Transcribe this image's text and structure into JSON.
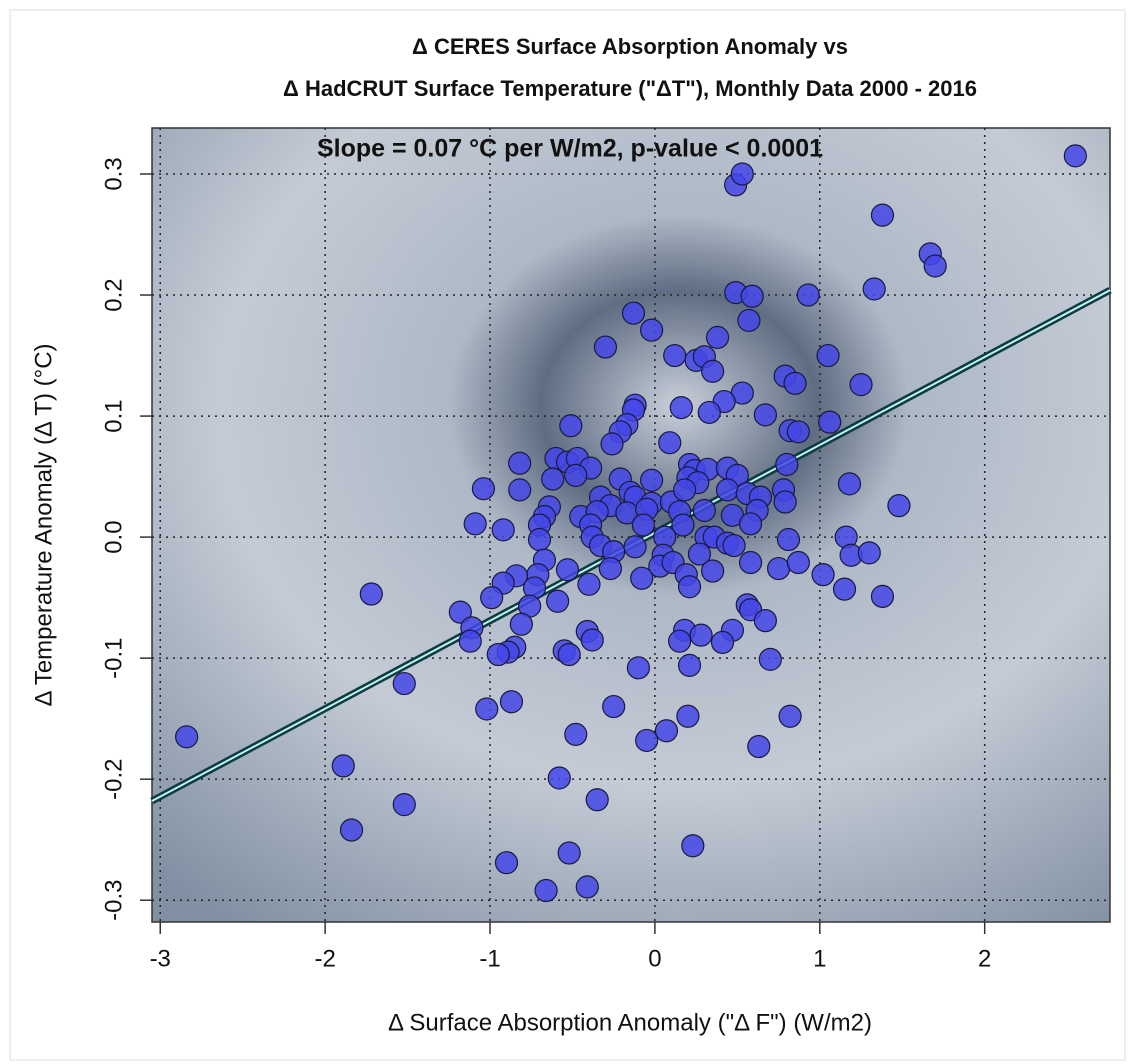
{
  "chart_data": {
    "type": "scatter",
    "title": [
      "Δ CERES Surface Absorption Anomaly vs",
      "Δ HadCRUT Surface Temperature (\"ΔT\"), Monthly Data 2000 - 2016"
    ],
    "annotation": "Slope = 0.07 °C per W/m2, p-value < 0.0001",
    "xlabel": "Δ Surface Absorption Anomaly (\"Δ F\") (W/m2)",
    "ylabel": "Δ Temperature Anomaly  (Δ T) (°C)",
    "xlim": [
      -3.05,
      2.76
    ],
    "ylim": [
      -0.318,
      0.338
    ],
    "xticks": [
      -3,
      -2,
      -1,
      0,
      1,
      2
    ],
    "yticks": [
      -0.3,
      -0.2,
      -0.1,
      {
        "value": 0,
        "label": "0.0"
      },
      0.1,
      0.2,
      0.3
    ],
    "grid": true,
    "color": "#4446e6",
    "x": [
      2.55,
      0.49,
      0.53,
      1.38,
      1.67,
      1.7,
      1.33,
      0.93,
      0.49,
      0.59,
      0.57,
      -0.13,
      -0.02,
      -0.3,
      0.12,
      0.25,
      0.3,
      0.35,
      0.38,
      1.05,
      0.79,
      0.85,
      1.25,
      0.53,
      0.42,
      0.33,
      0.16,
      -0.12,
      -0.13,
      0.67,
      1.06,
      -0.51,
      -0.17,
      -0.21,
      -0.26,
      0.09,
      0.82,
      0.87,
      -0.6,
      -0.53,
      -0.47,
      -0.39,
      -0.82,
      0.21,
      0.24,
      0.32,
      0.44,
      0.5,
      0.8,
      -1.04,
      -0.82,
      -0.62,
      -0.48,
      -0.21,
      -0.02,
      0.2,
      0.26,
      1.18,
      -0.33,
      -0.27,
      -0.15,
      -0.12,
      -0.02,
      0.1,
      0.18,
      0.44,
      0.56,
      0.64,
      0.78,
      0.79,
      -0.64,
      -0.67,
      -0.45,
      -0.35,
      -0.17,
      -0.05,
      0.15,
      0.3,
      0.47,
      0.62,
      1.48,
      -1.09,
      -0.92,
      -0.7,
      -0.39,
      -0.07,
      0.17,
      0.58,
      -0.7,
      -0.38,
      -0.33,
      -0.25,
      -0.12,
      0.06,
      0.31,
      0.36,
      0.44,
      0.48,
      0.81,
      1.16,
      0.05,
      0.03,
      0.11,
      0.27,
      0.35,
      0.58,
      0.75,
      0.87,
      1.19,
      1.3,
      1.02,
      -0.53,
      -0.67,
      -0.71,
      -0.84,
      -0.92,
      -0.4,
      -0.27,
      -0.08,
      0.19,
      0.21,
      1.15,
      1.38,
      -1.72,
      -0.73,
      -0.59,
      -0.99,
      -0.76,
      -1.18,
      0.56,
      0.58,
      -0.81,
      0.67,
      -1.11,
      0.18,
      0.47,
      -0.41,
      -0.38,
      -1.12,
      0.15,
      0.28,
      0.41,
      -0.85,
      -0.89,
      -0.55,
      -0.52,
      -0.95,
      0.7,
      0.21,
      -0.1,
      -1.52,
      -0.87,
      -1.02,
      -0.25,
      0.2,
      0.82,
      0.07,
      -0.48,
      -0.05,
      0.63,
      -2.84,
      -1.89,
      -0.58,
      -0.35,
      -1.52,
      -1.84,
      0.23,
      -0.52,
      -0.9,
      -0.41,
      -0.66
    ],
    "values": [
      0.315,
      0.291,
      0.3,
      0.266,
      0.234,
      0.224,
      0.205,
      0.2,
      0.202,
      0.199,
      0.179,
      0.185,
      0.171,
      0.157,
      0.15,
      0.146,
      0.149,
      0.137,
      0.165,
      0.15,
      0.133,
      0.127,
      0.126,
      0.119,
      0.112,
      0.103,
      0.107,
      0.109,
      0.105,
      0.101,
      0.095,
      0.092,
      0.093,
      0.087,
      0.077,
      0.078,
      0.088,
      0.087,
      0.065,
      0.062,
      0.065,
      0.057,
      0.061,
      0.06,
      0.055,
      0.056,
      0.057,
      0.051,
      0.06,
      0.04,
      0.039,
      0.048,
      0.051,
      0.048,
      0.047,
      0.049,
      0.045,
      0.044,
      0.033,
      0.026,
      0.037,
      0.033,
      0.028,
      0.029,
      0.039,
      0.039,
      0.036,
      0.033,
      0.039,
      0.029,
      0.025,
      0.017,
      0.017,
      0.021,
      0.02,
      0.023,
      0.021,
      0.022,
      0.018,
      0.022,
      0.026,
      0.011,
      0.006,
      0.01,
      0.01,
      0.01,
      0.01,
      0.011,
      -0.002,
      0.0,
      -0.007,
      -0.012,
      -0.008,
      0.0,
      0.0,
      0.0,
      -0.005,
      -0.007,
      -0.002,
      0.0,
      -0.015,
      -0.024,
      -0.021,
      -0.014,
      -0.028,
      -0.021,
      -0.026,
      -0.021,
      -0.015,
      -0.013,
      -0.031,
      -0.027,
      -0.019,
      -0.031,
      -0.032,
      -0.038,
      -0.039,
      -0.026,
      -0.034,
      -0.031,
      -0.041,
      -0.043,
      -0.049,
      -0.047,
      -0.042,
      -0.053,
      -0.05,
      -0.057,
      -0.062,
      -0.056,
      -0.06,
      -0.072,
      -0.069,
      -0.075,
      -0.077,
      -0.077,
      -0.078,
      -0.085,
      -0.086,
      -0.086,
      -0.081,
      -0.087,
      -0.091,
      -0.095,
      -0.094,
      -0.097,
      -0.097,
      -0.101,
      -0.106,
      -0.108,
      -0.121,
      -0.136,
      -0.142,
      -0.14,
      -0.148,
      -0.148,
      -0.16,
      -0.163,
      -0.168,
      -0.173,
      -0.165,
      -0.189,
      -0.199,
      -0.217,
      -0.221,
      -0.242,
      -0.255,
      -0.261,
      -0.269,
      -0.289,
      -0.292
    ],
    "trend_line": {
      "x": [
        -3.05,
        2.76
      ],
      "values": [
        -0.218,
        0.204
      ],
      "color": "#0d3b3f"
    }
  }
}
